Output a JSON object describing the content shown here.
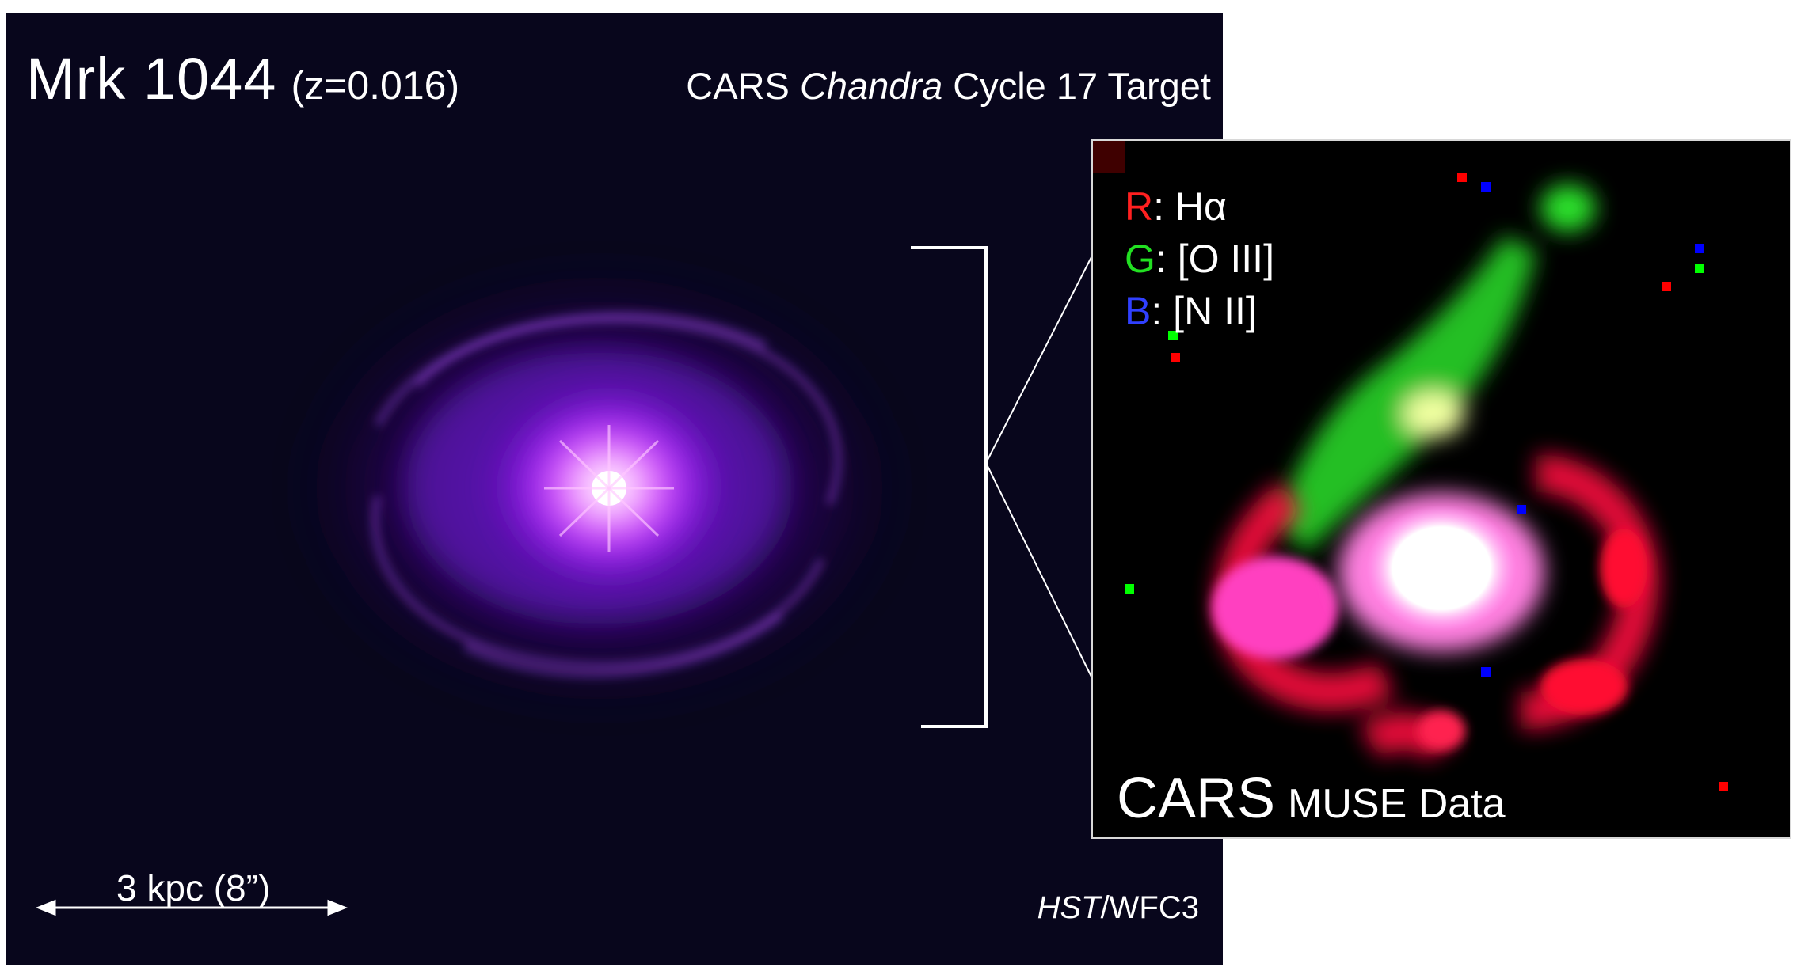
{
  "hst": {
    "title": "Mrk 1044",
    "redshift": "(z=0.016)",
    "target": {
      "pre": "CARS",
      "italic": "Chandra",
      "post": "Cycle 17 Target"
    },
    "scale_bar_label": "3 kpc (8”)",
    "instrument": {
      "italic": "HST",
      "rest": "/WFC3"
    }
  },
  "muse": {
    "legend": [
      {
        "channel": "R",
        "separator": ":",
        "line": "Hα",
        "color": "#ff2020"
      },
      {
        "channel": "G",
        "separator": ":",
        "line": "[O III]",
        "color": "#22e022"
      },
      {
        "channel": "B",
        "separator": ":",
        "line": "[N II]",
        "color": "#3040ff"
      }
    ],
    "title": "CARS",
    "subtitle": "MUSE Data"
  },
  "colors": {
    "hst_background": "#08061c",
    "galaxy_glow": "#a020ff",
    "callout_lines": "#ffffff"
  }
}
